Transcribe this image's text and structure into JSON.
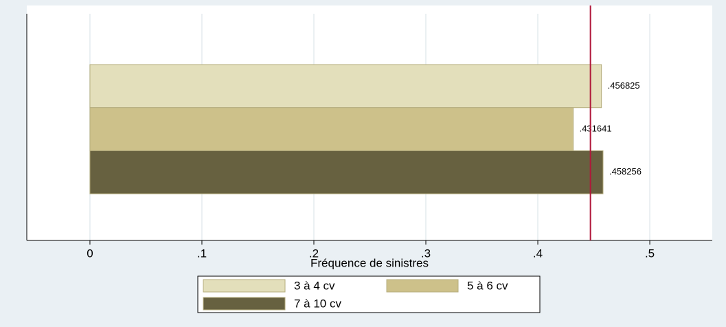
{
  "chart_data": {
    "type": "hbar",
    "xlabel": "Fréquence de sinistres",
    "categories": [
      null
    ],
    "series": [
      {
        "name": "3 à 4 cv",
        "color": "#e3dfbb",
        "values": [
          0.456825
        ],
        "value_labels": [
          ".456825"
        ]
      },
      {
        "name": "5 à 6 cv",
        "color": "#cdc18a",
        "values": [
          0.431641
        ],
        "value_labels": [
          ".431641"
        ]
      },
      {
        "name": "7 à 10 cv",
        "color": "#676140",
        "values": [
          0.458256
        ],
        "value_labels": [
          ".458256"
        ]
      }
    ],
    "xlim": [
      -0.0564,
      0.5558
    ],
    "xticks": [
      0,
      {
        "value": 0.1,
        "label": ".1"
      },
      {
        "value": 0.2,
        "label": ".2"
      },
      {
        "value": 0.3,
        "label": ".3"
      },
      {
        "value": 0.4,
        "label": ".4"
      },
      {
        "value": 0.5,
        "label": ".5"
      }
    ],
    "reference_line": {
      "value": 0.447,
      "color": "#b0173a"
    },
    "grid": true
  }
}
